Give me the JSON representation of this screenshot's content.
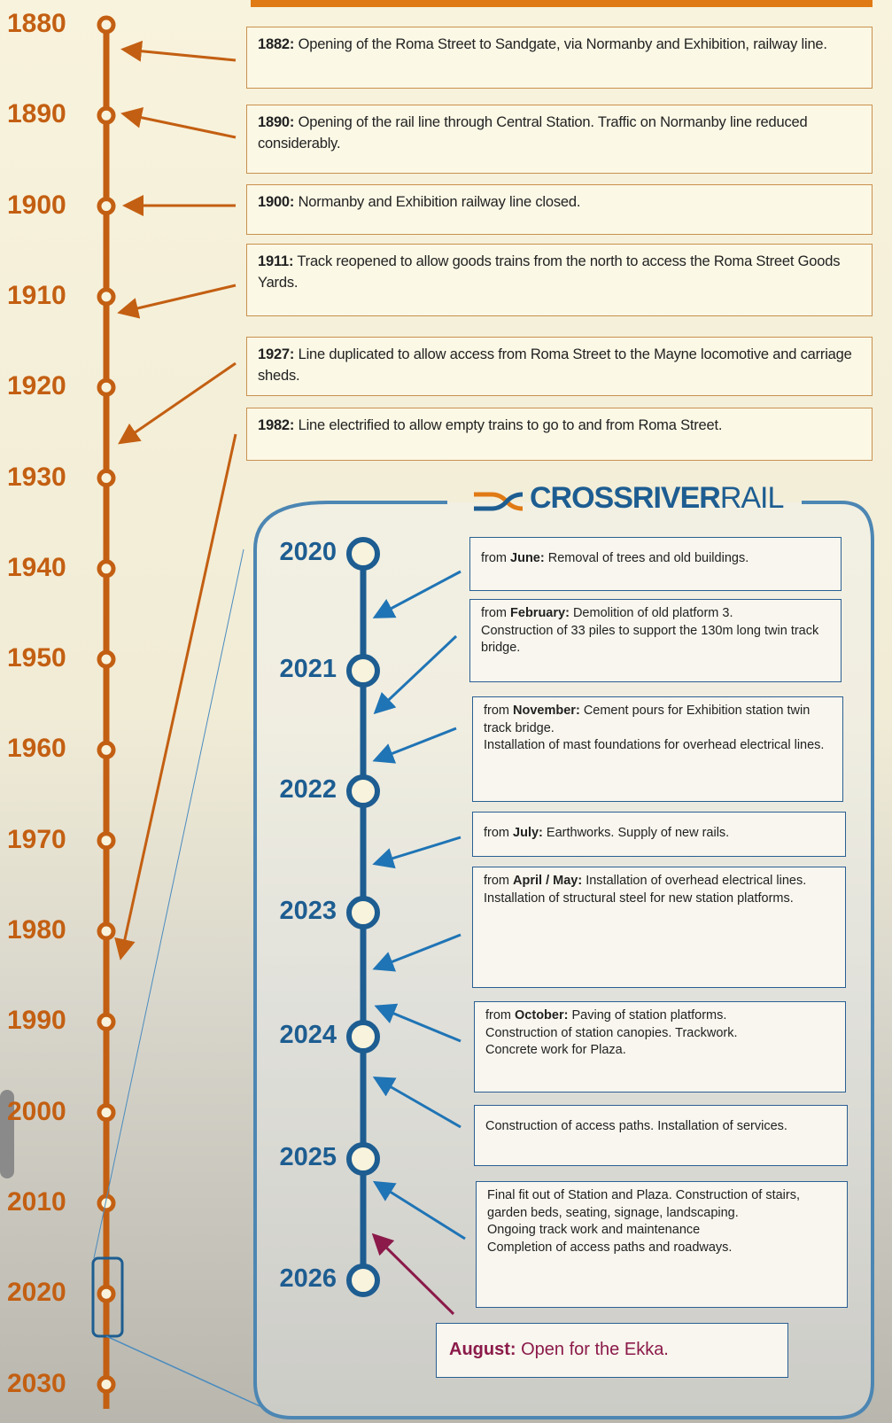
{
  "timeline": {
    "decades": [
      "1880",
      "1890",
      "1900",
      "1910",
      "1920",
      "1930",
      "1940",
      "1950",
      "1960",
      "1970",
      "1980",
      "1990",
      "2000",
      "2010",
      "2020",
      "2030"
    ]
  },
  "history": [
    {
      "year": "1882:",
      "text": "Opening of the Roma Street to Sandgate, via Normanby and Exhibition, railway line."
    },
    {
      "year": "1890:",
      "text": "Opening of the rail line through Central Station. Traffic on Normanby line reduced considerably."
    },
    {
      "year": "1900:",
      "text": "Normanby and Exhibition railway line closed."
    },
    {
      "year": "1911:",
      "text": "Track reopened to allow goods trains from the north to access the Roma Street Goods Yards."
    },
    {
      "year": "1927:",
      "text": "Line duplicated to allow access from Roma Street to the Mayne locomotive and carriage sheds."
    },
    {
      "year": "1982:",
      "text": "Line electrified to allow empty trains to go to and from Roma Street."
    }
  ],
  "crossriver": {
    "logo_bold": "CROSSRIVER",
    "logo_light": "RAIL",
    "years": [
      "2020",
      "2021",
      "2022",
      "2023",
      "2024",
      "2025",
      "2026"
    ],
    "events": [
      {
        "prefix": "from",
        "bold": "June:",
        "lines": [
          "Removal of trees and old buildings."
        ]
      },
      {
        "prefix": "from",
        "bold": "February:",
        "lines": [
          "Demolition of old platform 3.",
          "Construction of 33 piles to support the 130m long twin track bridge."
        ]
      },
      {
        "prefix": "from",
        "bold": "November:",
        "lines": [
          "Cement pours for Exhibition station twin track bridge.",
          "Installation of mast foundations for overhead electrical lines."
        ]
      },
      {
        "prefix": "from",
        "bold": "July:",
        "lines": [
          "Earthworks. Supply of new rails."
        ]
      },
      {
        "prefix": "from",
        "bold": "April / May:",
        "lines": [
          "Installation of overhead electrical lines.",
          "Installation of structural steel for new station platforms."
        ]
      },
      {
        "prefix": "from",
        "bold": "October:",
        "lines": [
          "Paving of station platforms.",
          "Construction of station canopies. Trackwork.",
          "Concrete work for Plaza."
        ]
      },
      {
        "lines": [
          "Construction of access paths. Installation of services."
        ]
      },
      {
        "lines": [
          "Final fit out of Station and Plaza. Construction of stairs, garden beds, seating, signage, landscaping.",
          "Ongoing track work and maintenance",
          "Completion of access paths and roadways."
        ]
      }
    ]
  },
  "finale": {
    "bold": "August:",
    "text": "Open for the Ekka."
  }
}
